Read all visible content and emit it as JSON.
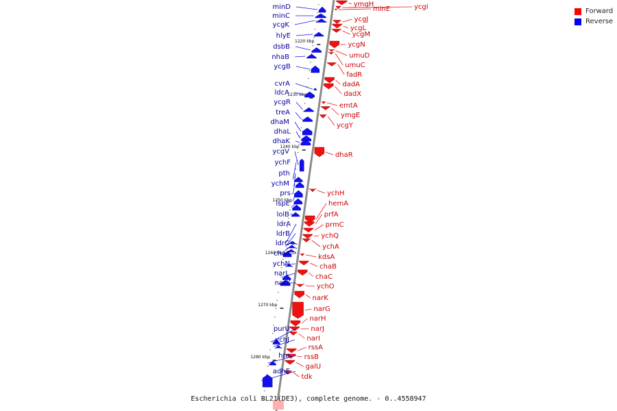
{
  "caption": "Escherichia coli BL21(DE3), complete genome. - 0..4558947",
  "legend": [
    {
      "label": "Forward",
      "color": "#ff0000"
    },
    {
      "label": "Reverse",
      "color": "#0000ff"
    }
  ],
  "colors": {
    "forward": "#ee1111",
    "reverse": "#1111ee",
    "backbone": "#888888",
    "label_forward": "#cc0000",
    "label_reverse": "#000099"
  },
  "ticks": [
    "1220 kbp",
    "1230 kbp",
    "1240 kbp",
    "1250 kbp",
    "1260 kbp",
    "1270 kbp",
    "1280 kbp"
  ],
  "reverse_genes": [
    "minD",
    "minC",
    "ycgK",
    "hlyE",
    "dsbB",
    "nhaB",
    "ycgB",
    "cvrA",
    "ldcA",
    "ycgR",
    "treA",
    "dhaM",
    "dhaL",
    "dhaK",
    "ycgV",
    "ychF",
    "pth",
    "ychM",
    "prs",
    "ispE",
    "lolB",
    "ldrA",
    "ldrB",
    "ldrC",
    "chaA",
    "ychN",
    "narL",
    "narX",
    "purU",
    "ychJ",
    "hns",
    "adhE"
  ],
  "forward_genes": [
    "ymgH",
    "ycgI",
    "minE",
    "ycgJ",
    "ycgL",
    "ycgM",
    "ycgN",
    "umuD",
    "umuC",
    "fadR",
    "dadA",
    "dadX",
    "emtA",
    "ymgE",
    "ycgY",
    "dhaR",
    "ychH",
    "hemA",
    "prfA",
    "prmC",
    "ychQ",
    "ychA",
    "kdsA",
    "chaB",
    "chaC",
    "ychO",
    "narK",
    "narG",
    "narH",
    "narJ",
    "narI",
    "rssA",
    "rssB",
    "galU",
    "tdk"
  ]
}
